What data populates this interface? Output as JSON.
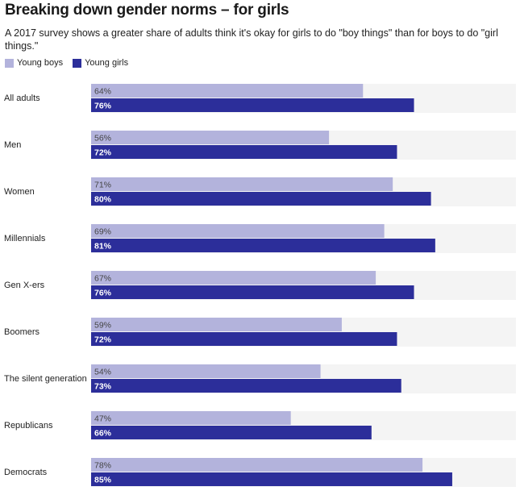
{
  "title": "Breaking down gender norms – for girls",
  "subtitle": "A 2017 survey shows a greater share of adults think it's okay for girls to do \"boy things\" than for boys to do \"girl things.\"",
  "legend": {
    "boys_label": "Young boys",
    "girls_label": "Young girls"
  },
  "colors": {
    "boys": "#b3b3dc",
    "girls": "#2c2e9a",
    "track": "#f4f4f4"
  },
  "chart_data": {
    "type": "bar",
    "orientation": "horizontal",
    "title": "Breaking down gender norms – for girls",
    "categories": [
      "All adults",
      "Men",
      "Women",
      "Millennials",
      "Gen X-ers",
      "Boomers",
      "The silent generation",
      "Republicans",
      "Democrats"
    ],
    "series": [
      {
        "name": "Young boys",
        "values": [
          64,
          56,
          71,
          69,
          67,
          59,
          54,
          47,
          78
        ],
        "labels": [
          "64%",
          "56%",
          "71%",
          "69%",
          "67%",
          "59%",
          "54%",
          "47%",
          "78%"
        ]
      },
      {
        "name": "Young girls",
        "values": [
          76,
          72,
          80,
          81,
          76,
          72,
          73,
          66,
          85
        ],
        "labels": [
          "76%",
          "72%",
          "80%",
          "81%",
          "76%",
          "72%",
          "73%",
          "66%",
          "85%"
        ]
      }
    ],
    "xlim": [
      0,
      100
    ],
    "legend_position": "top-left",
    "grid": false
  }
}
